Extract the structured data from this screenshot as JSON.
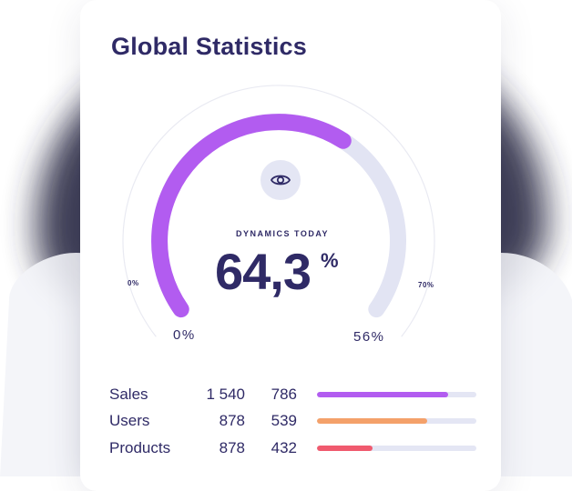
{
  "card": {
    "title": "Global Statistics"
  },
  "gauge": {
    "label": "DYNAMICS TODAY",
    "value": "64,3",
    "unit": "%",
    "outer_min_label": "0%",
    "outer_max_label": "70%",
    "range_min_label": "0%",
    "range_max_label": "56%",
    "progress_fraction": 0.643,
    "colors": {
      "progress": "#b25cf0",
      "track": "#e2e4f3",
      "outer": "#e9eaf2"
    },
    "icon": "eye-icon"
  },
  "stats": [
    {
      "name": "Sales",
      "value1": "1 540",
      "value2": "786",
      "bar_fraction": 0.82,
      "color": "#b25cf0"
    },
    {
      "name": "Users",
      "value1": "878",
      "value2": "539",
      "bar_fraction": 0.69,
      "color": "#f4a16a"
    },
    {
      "name": "Products",
      "value1": "878",
      "value2": "432",
      "bar_fraction": 0.35,
      "color": "#f05a6e"
    }
  ]
}
